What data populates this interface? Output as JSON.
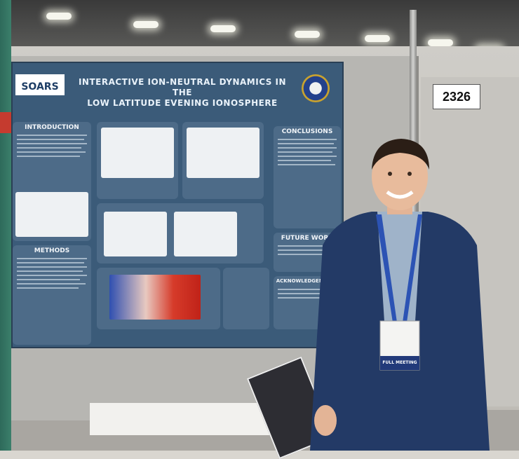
{
  "poster": {
    "title_line1": "INTERACTIVE ION-NEUTRAL DYNAMICS IN THE",
    "title_line2": "LOW LATITUDE EVENING IONOSPHERE",
    "logo_text": "SOARS",
    "sections": {
      "introduction": "INTRODUCTION",
      "methods": "METHODS",
      "conclusions": "CONCLUSIONS",
      "future_work": "FUTURE WORK",
      "acknowledgements": "ACKNOWLEDGEMENTS"
    }
  },
  "booth_number": "2326",
  "badge": {
    "footer": "FULL MEETING"
  }
}
